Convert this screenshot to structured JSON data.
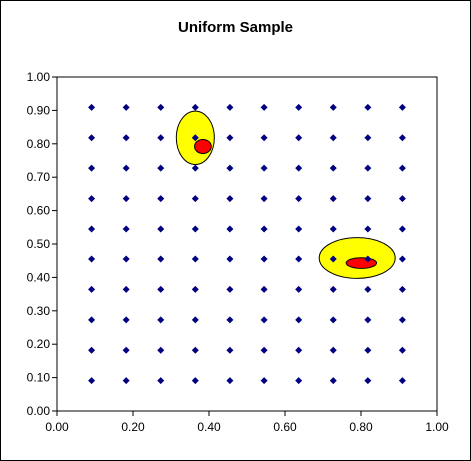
{
  "chart_data": {
    "type": "scatter",
    "title": "Uniform Sample",
    "xlabel": "",
    "ylabel": "",
    "xlim": [
      0.0,
      1.0
    ],
    "ylim": [
      0.0,
      1.0
    ],
    "x_ticks": [
      "0.00",
      "0.20",
      "0.40",
      "0.60",
      "0.80",
      "1.00"
    ],
    "y_ticks": [
      "0.00",
      "0.10",
      "0.20",
      "0.30",
      "0.40",
      "0.50",
      "0.60",
      "0.70",
      "0.80",
      "0.90",
      "1.00"
    ],
    "grid": false,
    "legend": "none",
    "series": [
      {
        "marker": "diamond",
        "color": "#000080",
        "x_values": [
          0.091,
          0.182,
          0.273,
          0.364,
          0.455,
          0.545,
          0.636,
          0.727,
          0.818,
          0.909
        ],
        "y_values": [
          0.091,
          0.182,
          0.273,
          0.364,
          0.455,
          0.545,
          0.636,
          0.727,
          0.818,
          0.909
        ]
      }
    ],
    "regions": [
      {
        "shape": "ellipse",
        "color": "#ffff00",
        "outline": "#000000",
        "cx": 0.364,
        "cy": 0.818,
        "rx": 0.05,
        "ry": 0.08
      },
      {
        "shape": "ellipse",
        "color": "#ff0000",
        "outline": "#000000",
        "cx": 0.384,
        "cy": 0.792,
        "rx": 0.022,
        "ry": 0.021
      },
      {
        "shape": "ellipse",
        "color": "#ffff00",
        "outline": "#000000",
        "cx": 0.79,
        "cy": 0.458,
        "rx": 0.1,
        "ry": 0.061
      },
      {
        "shape": "ellipse",
        "color": "#ff0000",
        "outline": "#000000",
        "cx": 0.801,
        "cy": 0.443,
        "rx": 0.04,
        "ry": 0.016
      }
    ],
    "colors": {
      "marker": "#000080",
      "highlight_outer": "#ffff00",
      "highlight_inner": "#ff0000",
      "axis": "#000000",
      "background": "#ffffff"
    }
  }
}
